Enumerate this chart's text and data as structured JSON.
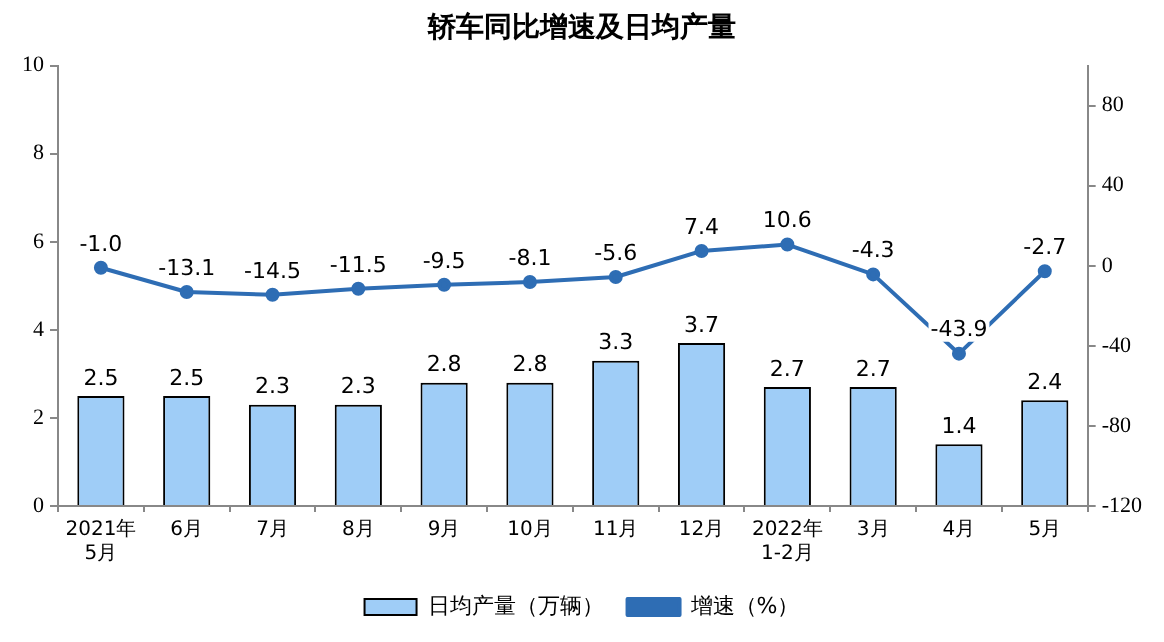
{
  "chart_data": {
    "type": "bar",
    "title": "轿车同比增速及日均产量",
    "categories": [
      "2021年\n5月",
      "6月",
      "7月",
      "8月",
      "9月",
      "10月",
      "11月",
      "12月",
      "2022年\n1-2月",
      "3月",
      "4月",
      "5月"
    ],
    "series": [
      {
        "name": "日均产量（万辆）",
        "color": "#9fcdf7",
        "values": [
          2.5,
          2.5,
          2.3,
          2.3,
          2.8,
          2.8,
          3.3,
          3.7,
          2.7,
          2.7,
          1.4,
          2.4
        ]
      },
      {
        "name": "增速（%）",
        "type": "line",
        "axis": "y2",
        "color": "#2e6db4",
        "values": [
          -1.0,
          -13.1,
          -14.5,
          -11.5,
          -9.5,
          -8.1,
          -5.6,
          7.4,
          10.6,
          -4.3,
          -43.9,
          -2.7
        ],
        "value_labels": [
          "-1.0",
          "-13.1",
          "-14.5",
          "-11.5",
          "-9.5",
          "-8.1",
          "-5.6",
          "7.4",
          "10.6",
          "-4.3",
          "-43.9",
          "-2.7"
        ]
      }
    ],
    "ylim": [
      0,
      10
    ],
    "yticks": [
      0,
      2,
      4,
      6,
      8,
      10
    ],
    "y2lim": [
      -120,
      100
    ],
    "y2ticks": [
      -120,
      -80,
      -40,
      0,
      40,
      80
    ],
    "data_labels": true,
    "grid": false,
    "legend": "bottom",
    "marker": "circle",
    "line_style": "solid"
  }
}
